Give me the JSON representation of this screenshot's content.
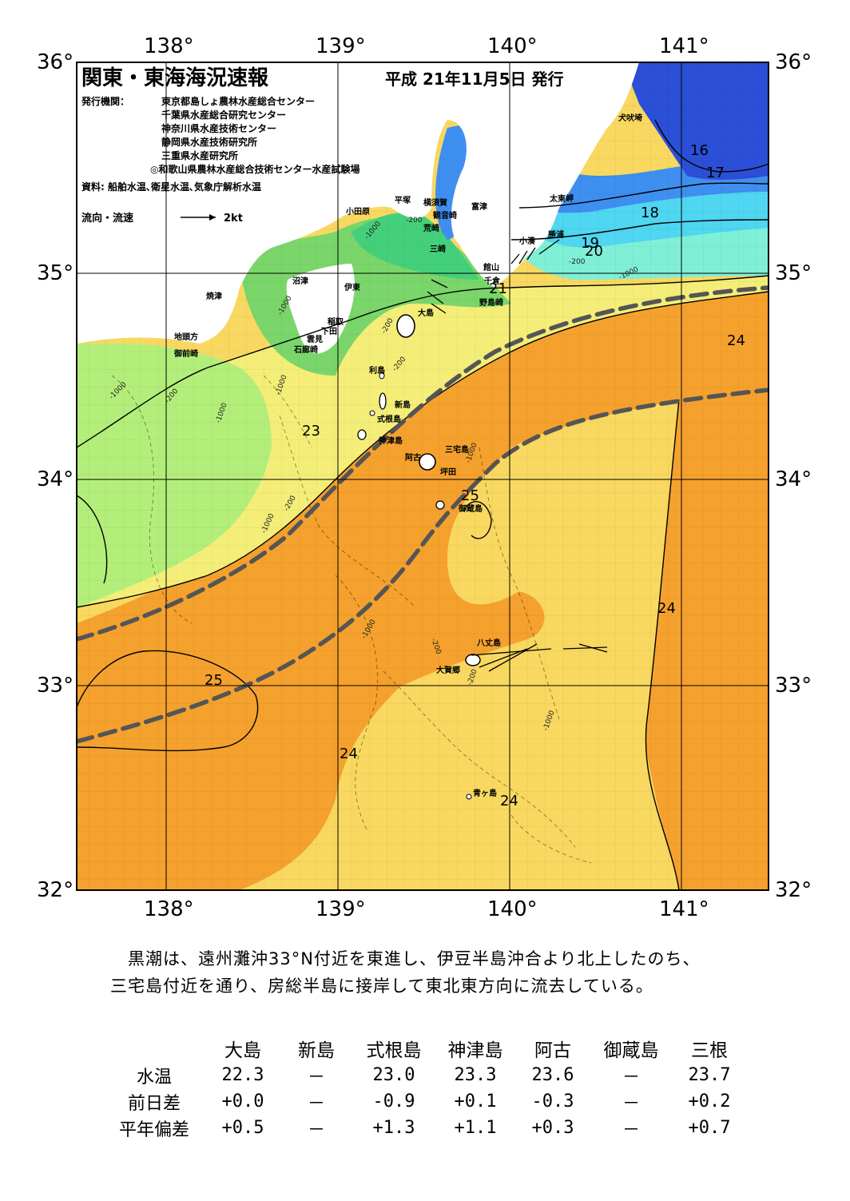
{
  "title": "関東・東海海況速報",
  "issue_date": "平成 21年11月5日 発行",
  "publisher_label": "発行機関：",
  "publishers": [
    "東京都島しょ農林水産総合センター",
    "千葉県水産総合研究センター",
    "神奈川県水産技術センター",
    "静岡県水産技術研究所",
    "三重県水産研究所",
    "◎和歌山県農林水産総合技術センター水産試験場"
  ],
  "source": "資料: 船舶水温､衛星水温､気象庁解析水温",
  "flow_legend": {
    "label": "流向・流速",
    "value": "2kt"
  },
  "axes": {
    "lon_ticks": [
      "138°",
      "139°",
      "140°",
      "141°"
    ],
    "lat_ticks": [
      "36°",
      "35°",
      "34°",
      "33°",
      "32°"
    ],
    "lon_range": [
      137.5,
      141.5
    ],
    "lat_range": [
      32,
      36
    ]
  },
  "colors": {
    "kuroshio_axis": "#555555",
    "t16": "#2b4fd6",
    "t17": "#3f8ff0",
    "t18": "#4fd6f0",
    "t19": "#7ff0d6",
    "t20": "#44d07a",
    "t21": "#7ad66a",
    "t22": "#b4ee7a",
    "t23": "#f4ee78",
    "t24": "#f8d860",
    "t25": "#f5a12e",
    "land": "#ffffff"
  },
  "isotherm_labels": [
    "16",
    "17",
    "18",
    "19",
    "20",
    "21",
    "23",
    "24",
    "24",
    "25",
    "24",
    "25",
    "24",
    "24"
  ],
  "depth_labels": [
    "-1000",
    "-200",
    "-1000",
    "-200",
    "-1000",
    "-200",
    "-200",
    "-200",
    "-1000",
    "-1000",
    "-200",
    "-1000",
    "-1000",
    "-1000",
    "-200",
    "-1000",
    "-1000",
    "-200"
  ],
  "place_names": [
    "犬吠埼",
    "太東岬",
    "勝浦",
    "小湊",
    "館山",
    "千倉",
    "野島崎",
    "富津",
    "観音崎",
    "横須賀",
    "平塚",
    "荒崎",
    "三崎",
    "小田原",
    "沼津",
    "伊東",
    "焼津",
    "稲取",
    "下田",
    "雲見",
    "石廊崎",
    "地頭方",
    "御前崎",
    "大島",
    "利島",
    "新島",
    "式根島",
    "神津島",
    "三宅島",
    "阿古",
    "坪田",
    "御蔵島",
    "八丈島",
    "大賀郷",
    "青ヶ島"
  ],
  "summary": [
    "黒潮は、遠州灘沖33°N付近を東進し、伊豆半島沖合より北上したのち、",
    "三宅島付近を通り、房総半島に接岸して東北東方向に流去している。"
  ],
  "table": {
    "columns": [
      "大島",
      "新島",
      "式根島",
      "神津島",
      "阿古",
      "御蔵島",
      "三根"
    ],
    "rows": [
      {
        "label": "水温",
        "values": [
          "22.3",
          "－",
          "23.0",
          "23.3",
          "23.6",
          "－",
          "23.7"
        ]
      },
      {
        "label": "前日差",
        "values": [
          "+0.0",
          "－",
          "-0.9",
          "+0.1",
          "-0.3",
          "－",
          "+0.2"
        ]
      },
      {
        "label": "平年偏差",
        "values": [
          "+0.5",
          "－",
          "+1.3",
          "+1.1",
          "+0.3",
          "－",
          "+0.7"
        ]
      }
    ]
  }
}
